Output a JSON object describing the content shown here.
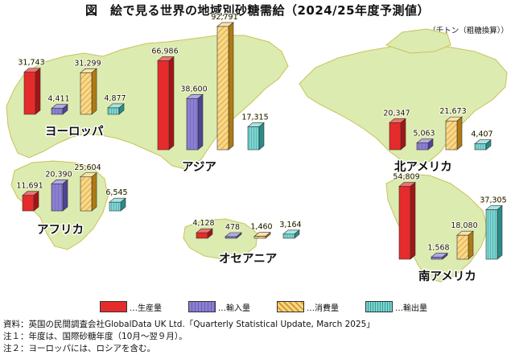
{
  "header": {
    "title": "図　絵で見る世界の地域別砂糖需給（2024/25年度予測値）",
    "unit": "（千トン（粗糖換算））"
  },
  "chart_data": {
    "type": "bar",
    "title": "図　絵で見る世界の地域別砂糖需給（2024/25年度予測値）",
    "unit": "千トン（粗糖換算）",
    "categories": [
      "生産量",
      "輸入量",
      "消費量",
      "輸出量"
    ],
    "regions": [
      {
        "name": "ヨーロッパ",
        "values": [
          31743,
          4411,
          31299,
          4877
        ],
        "labels": [
          "31,743",
          "4,411",
          "31,299",
          "4,877"
        ]
      },
      {
        "name": "アジア",
        "values": [
          66986,
          38600,
          92791,
          17315
        ],
        "labels": [
          "66,986",
          "38,600",
          "92,791",
          "17,315"
        ]
      },
      {
        "name": "アフリカ",
        "values": [
          11691,
          20390,
          25604,
          6545
        ],
        "labels": [
          "11,691",
          "20,390",
          "25,604",
          "6,545"
        ]
      },
      {
        "name": "オセアニア",
        "values": [
          4128,
          478,
          1460,
          3164
        ],
        "labels": [
          "4,128",
          "478",
          "1,460",
          "3,164"
        ]
      },
      {
        "name": "北アメリカ",
        "values": [
          20347,
          5063,
          21673,
          4407
        ],
        "labels": [
          "20,347",
          "5,063",
          "21,673",
          "4,407"
        ]
      },
      {
        "name": "南アメリカ",
        "values": [
          54809,
          1568,
          18080,
          37305
        ],
        "labels": [
          "54,809",
          "1,568",
          "18,080",
          "37,305"
        ]
      }
    ],
    "colors": {
      "生産量": "#e52b2b",
      "輸入量": "#8a7fd0",
      "消費量": "#f5c25c",
      "輸出量": "#5cc3c0"
    },
    "map_color": "#dcebb0"
  },
  "legend": [
    {
      "label": "…生産量",
      "color": "#e52b2b"
    },
    {
      "label": "…輸入量",
      "color": "#8a7fd0"
    },
    {
      "label": "…消費量",
      "color": "#f5c25c"
    },
    {
      "label": "…輸出量",
      "color": "#5cc3c0"
    }
  ],
  "notes": {
    "source": "資料：英国の民間調査会社GlobalData UK Ltd.「Quarterly Statistical Update, March 2025」",
    "note1": "注１：年度は、国際砂糖年度（10月～翌９月）。",
    "note2": "注２：ヨーロッパには、ロシアを含む。"
  }
}
